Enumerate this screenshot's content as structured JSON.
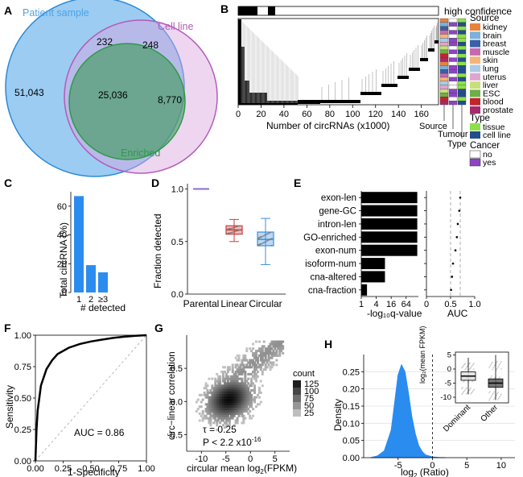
{
  "panels": {
    "A": {
      "label": "A",
      "sets": [
        {
          "name": "Patient sample",
          "color": "#4aa3e8"
        },
        {
          "name": "Cell line",
          "color": "#b25bb8"
        },
        {
          "name": "Enriched",
          "color": "#2f9a4a"
        }
      ],
      "counts": {
        "patient_only": "51,043",
        "patient_cell": "232",
        "cell_only": "248",
        "all_three": "25,036",
        "cell_enriched": "8,770"
      }
    },
    "B": {
      "label": "B",
      "top_label": "high confidence",
      "x_ticks": [
        "0",
        "20",
        "40",
        "60",
        "80",
        "100",
        "120",
        "140",
        "160"
      ],
      "xlabel": "Number of circRNAs (x1000)",
      "col_labels": [
        "Source",
        "Tumour",
        "Type"
      ],
      "legend_source_title": "Source",
      "sources": [
        {
          "name": "kidney",
          "color": "#e8833a"
        },
        {
          "name": "brain",
          "color": "#7fb0d8"
        },
        {
          "name": "breast",
          "color": "#3b5fa8"
        },
        {
          "name": "muscle",
          "color": "#c56ab0"
        },
        {
          "name": "skin",
          "color": "#f5b57a"
        },
        {
          "name": "lung",
          "color": "#aacbe6"
        },
        {
          "name": "uterus",
          "color": "#e0a5cf"
        },
        {
          "name": "liver",
          "color": "#c8e07a"
        },
        {
          "name": "ESC",
          "color": "#6fae4a"
        },
        {
          "name": "blood",
          "color": "#c2242b"
        },
        {
          "name": "prostate",
          "color": "#a7286c"
        }
      ],
      "legend_type_title": "Type",
      "types": [
        {
          "name": "tissue",
          "color": "#8ee04a"
        },
        {
          "name": "cell line",
          "color": "#234e8c"
        }
      ],
      "legend_cancer_title": "Cancer",
      "cancer": [
        {
          "name": "no",
          "color": "#ffffff"
        },
        {
          "name": "yes",
          "color": "#8e44c2"
        }
      ]
    },
    "C": {
      "label": "C",
      "ylabel": "Total circRNA (%)",
      "xlabel": "# detected",
      "y_ticks": [
        "0",
        "20",
        "40",
        "60"
      ],
      "bar_color": "#2b8cf0"
    },
    "D": {
      "label": "D",
      "ylabel": "Fraction detected",
      "y_ticks": [
        "0.0",
        "0.5",
        "1.0"
      ],
      "groups": [
        {
          "name": "Parental",
          "color": "#8e6ad6"
        },
        {
          "name": "Linear",
          "color": "#d23a3a"
        },
        {
          "name": "Circular",
          "color": "#3b8fe0"
        }
      ]
    },
    "E": {
      "label": "E",
      "features": [
        "exon-len",
        "gene-GC",
        "intron-len",
        "GO-enriched",
        "exon-num",
        "isoform-num",
        "cna-altered",
        "cna-fraction"
      ],
      "xlabel_q": "-log₁₀q-value",
      "q_ticks": [
        "1",
        "4",
        "16",
        "64"
      ],
      "xlabel_auc": "AUC",
      "auc_ticks": [
        "0",
        "0.5",
        "1.0"
      ]
    },
    "F": {
      "label": "F",
      "ylabel": "Sensitivity",
      "xlabel": "1-Specificity",
      "ticks": [
        "0.00",
        "0.25",
        "0.50",
        "0.75",
        "1.00"
      ],
      "auc_text": "AUC = 0.86"
    },
    "G": {
      "label": "G",
      "ylabel": "circ−linear correlation",
      "xlabel_pre": "circular mean log",
      "xlabel_sub": "2",
      "xlabel_post": "(FPKM)",
      "x_ticks": [
        "-10",
        "-5",
        "0",
        "5"
      ],
      "y_ticks": [
        "-0.5",
        "0.0",
        "0.5"
      ],
      "legend_title": "count",
      "legend_values": [
        "125",
        "100",
        "75",
        "50",
        "25"
      ],
      "tau_text": "τ = 0.25",
      "p_text": "P < 2.2 x10",
      "p_exp": "-16"
    },
    "H": {
      "label": "H",
      "ylabel": "Density",
      "xlabel_pre": "log",
      "xlabel_sub": "2",
      "xlabel_post": " (Ratio)",
      "x_ticks": [
        "-5",
        "0",
        "5",
        "10"
      ],
      "y_ticks": [
        "0.00",
        "0.05",
        "0.10",
        "0.15",
        "0.20",
        "0.25"
      ],
      "inset_ylabel": "log₂(mean FPKM)",
      "inset_y_ticks": [
        "5",
        "0",
        "-5",
        "-10"
      ],
      "inset_groups": [
        "Dominant",
        "Other"
      ],
      "fill_color": "#2b8cf0"
    }
  },
  "chart_data": [
    {
      "panel": "C",
      "type": "bar",
      "categories": [
        "1",
        "2",
        "≥3"
      ],
      "values": [
        67,
        19,
        14
      ],
      "xlabel": "# detected",
      "ylabel": "Total circRNA (%)",
      "ylim": [
        0,
        70
      ]
    },
    {
      "panel": "D",
      "type": "box",
      "categories": [
        "Parental",
        "Linear",
        "Circular"
      ],
      "series": [
        {
          "name": "Parental",
          "min": 1.0,
          "q1": 1.0,
          "median": 1.0,
          "q3": 1.0,
          "max": 1.0
        },
        {
          "name": "Linear",
          "min": 0.5,
          "q1": 0.57,
          "median": 0.61,
          "q3": 0.65,
          "max": 0.71
        },
        {
          "name": "Circular",
          "min": 0.28,
          "q1": 0.46,
          "median": 0.52,
          "q3": 0.59,
          "max": 0.72
        }
      ],
      "ylabel": "Fraction detected",
      "ylim": [
        0,
        1.05
      ]
    },
    {
      "panel": "E-q",
      "type": "bar",
      "categories": [
        "exon-len",
        "gene-GC",
        "intron-len",
        "GO-enriched",
        "exon-num",
        "isoform-num",
        "cna-altered",
        "cna-fraction"
      ],
      "values": [
        180,
        180,
        180,
        180,
        180,
        9,
        9,
        1.7
      ],
      "xlabel": "-log₁₀q-value",
      "xscale": "log",
      "xlim": [
        1,
        200
      ]
    },
    {
      "panel": "E-auc",
      "type": "scatter",
      "categories": [
        "exon-len",
        "gene-GC",
        "intron-len",
        "GO-enriched",
        "exon-num",
        "isoform-num",
        "cna-altered",
        "cna-fraction"
      ],
      "values": [
        0.7,
        0.68,
        0.65,
        0.63,
        0.6,
        0.55,
        0.53,
        0.51
      ],
      "xlabel": "AUC",
      "xlim": [
        0,
        1.0
      ]
    },
    {
      "panel": "F",
      "type": "line",
      "x": [
        0,
        0.01,
        0.02,
        0.05,
        0.1,
        0.15,
        0.2,
        0.3,
        0.4,
        0.5,
        0.6,
        0.7,
        0.8,
        0.9,
        1.0
      ],
      "y": [
        0,
        0.25,
        0.4,
        0.6,
        0.73,
        0.8,
        0.85,
        0.9,
        0.93,
        0.95,
        0.965,
        0.978,
        0.988,
        0.995,
        1.0
      ],
      "xlabel": "1-Specificity",
      "ylabel": "Sensitivity",
      "xlim": [
        0,
        1
      ],
      "ylim": [
        0,
        1
      ]
    },
    {
      "panel": "G",
      "type": "heatmap",
      "xlabel": "circular mean log2(FPKM)",
      "ylabel": "circ−linear correlation",
      "xlim": [
        -13,
        8
      ],
      "ylim": [
        -0.75,
        1.0
      ],
      "legend": [
        "125",
        "100",
        "75",
        "50",
        "25"
      ]
    },
    {
      "panel": "H",
      "type": "area",
      "x": [
        -9,
        -8,
        -7,
        -6,
        -5.5,
        -5,
        -4.5,
        -4,
        -3.5,
        -3,
        -2.5,
        -2,
        -1.5,
        -1,
        0,
        1,
        2
      ],
      "y": [
        0,
        0.005,
        0.02,
        0.08,
        0.16,
        0.24,
        0.27,
        0.25,
        0.19,
        0.12,
        0.07,
        0.035,
        0.018,
        0.008,
        0.002,
        0.0005,
        0
      ],
      "xlabel": "log2 (Ratio)",
      "ylabel": "Density",
      "xlim": [
        -10,
        12
      ],
      "ylim": [
        0,
        0.3
      ]
    },
    {
      "panel": "H-inset",
      "type": "box",
      "categories": [
        "Dominant",
        "Other"
      ],
      "series": [
        {
          "name": "Dominant",
          "min": -9,
          "q1": -4,
          "median": -2.5,
          "q3": -1,
          "max": 4
        },
        {
          "name": "Other",
          "min": -11,
          "q1": -6.5,
          "median": -5,
          "q3": -3.5,
          "max": 5
        }
      ],
      "ylabel": "log2(mean FPKM)",
      "ylim": [
        -12,
        6
      ]
    }
  ]
}
